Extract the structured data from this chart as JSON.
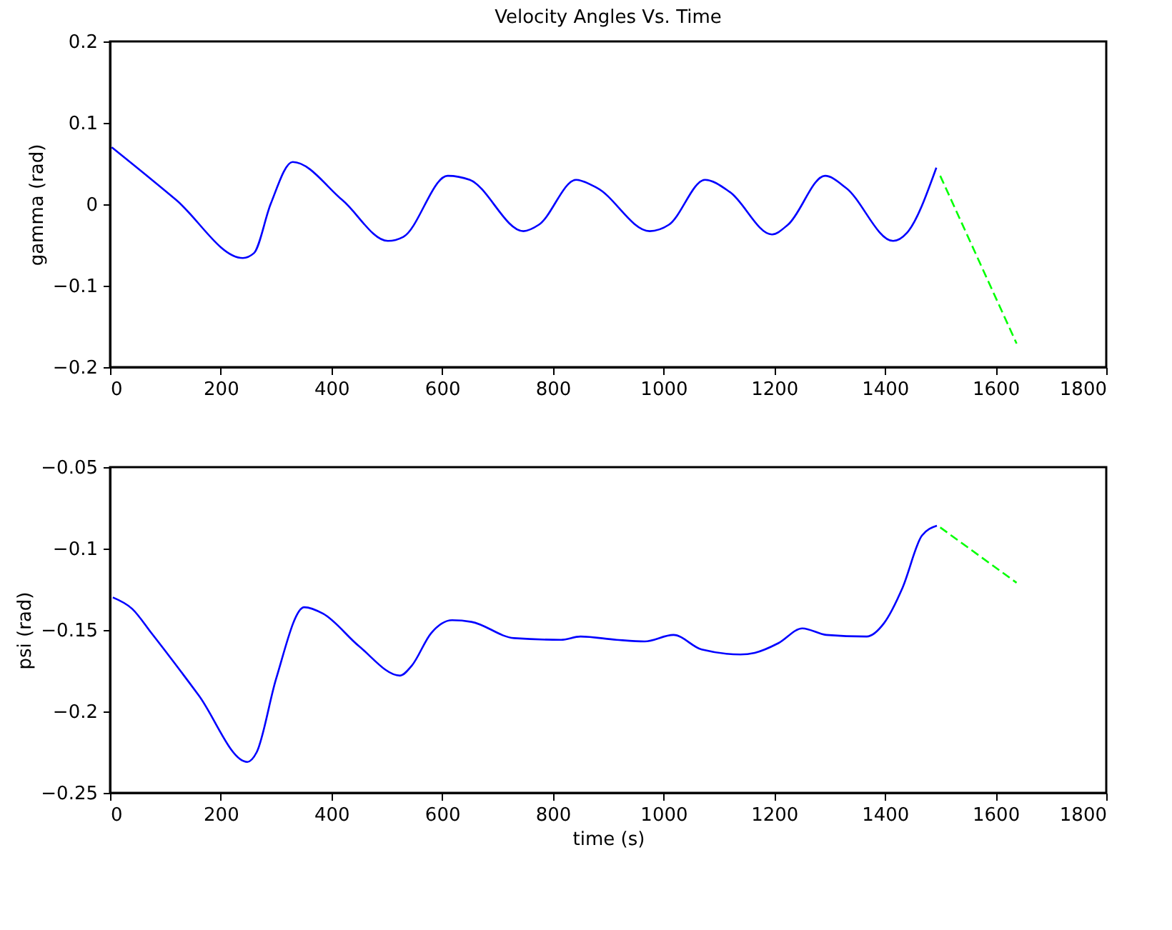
{
  "chart_data": [
    {
      "type": "line",
      "title": "Velocity Angles Vs. Time",
      "ylabel": "gamma (rad)",
      "xlim": [
        0,
        1800
      ],
      "xticks": [
        0,
        200,
        400,
        600,
        800,
        1000,
        1200,
        1400,
        1600,
        1800
      ],
      "ylim": [
        -0.2,
        0.2
      ],
      "yticks": [
        -0.2,
        -0.1,
        0,
        0.1,
        0.2
      ],
      "grid": false,
      "series": [
        {
          "color": "#0000ff",
          "line_style": "solid",
          "x": [
            3,
            120,
            240,
            260,
            290,
            330,
            420,
            502,
            530,
            610,
            650,
            747,
            775,
            842,
            880,
            975,
            1010,
            1075,
            1120,
            1196,
            1225,
            1292,
            1330,
            1415,
            1440,
            1493
          ],
          "values": [
            0.07,
            0.005,
            -0.066,
            -0.06,
            0.0,
            0.052,
            0.005,
            -0.045,
            -0.04,
            0.035,
            0.03,
            -0.033,
            -0.025,
            0.03,
            0.02,
            -0.033,
            -0.025,
            0.03,
            0.015,
            -0.037,
            -0.025,
            0.035,
            0.02,
            -0.045,
            -0.035,
            0.045
          ]
        },
        {
          "color": "#00ff00",
          "line_style": "dashed",
          "x": [
            1500,
            1638
          ],
          "values": [
            0.035,
            -0.171
          ]
        }
      ]
    },
    {
      "type": "line",
      "xlabel": "time (s)",
      "ylabel": "psi (rad)",
      "xlim": [
        0,
        1800
      ],
      "xticks": [
        0,
        200,
        400,
        600,
        800,
        1000,
        1200,
        1400,
        1600,
        1800
      ],
      "ylim": [
        -0.25,
        -0.05
      ],
      "yticks": [
        -0.25,
        -0.2,
        -0.15,
        -0.1,
        -0.05
      ],
      "grid": false,
      "series": [
        {
          "color": "#0000ff",
          "line_style": "solid",
          "x": [
            5,
            40,
            75,
            160,
            248,
            265,
            300,
            351,
            385,
            450,
            524,
            545,
            580,
            618,
            653,
            730,
            815,
            850,
            915,
            966,
            1018,
            1069,
            1139,
            1165,
            1208,
            1251,
            1294,
            1367,
            1398,
            1432,
            1467,
            1494
          ],
          "values": [
            -0.13,
            -0.137,
            -0.152,
            -0.19,
            -0.231,
            -0.225,
            -0.18,
            -0.136,
            -0.14,
            -0.16,
            -0.178,
            -0.172,
            -0.152,
            -0.144,
            -0.145,
            -0.155,
            -0.156,
            -0.154,
            -0.156,
            -0.157,
            -0.153,
            -0.162,
            -0.165,
            -0.164,
            -0.158,
            -0.149,
            -0.153,
            -0.154,
            -0.146,
            -0.124,
            -0.092,
            -0.086
          ]
        },
        {
          "color": "#00ff00",
          "line_style": "dashed",
          "x": [
            1500,
            1638
          ],
          "values": [
            -0.087,
            -0.121
          ]
        }
      ]
    }
  ]
}
